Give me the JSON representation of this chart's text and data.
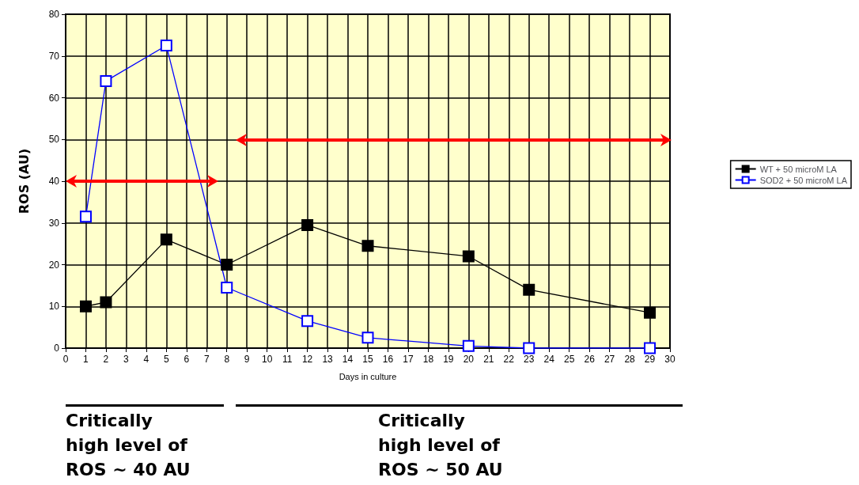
{
  "chart_data": {
    "type": "line",
    "xlabel": "Days in culture",
    "ylabel": "ROS (AU)",
    "xlim": [
      0,
      30
    ],
    "xticks": [
      0,
      1,
      2,
      3,
      4,
      5,
      6,
      7,
      8,
      9,
      10,
      11,
      12,
      13,
      14,
      15,
      16,
      17,
      18,
      19,
      20,
      21,
      22,
      23,
      24,
      25,
      26,
      27,
      28,
      29,
      30
    ],
    "ylim": [
      0,
      80
    ],
    "yticks": [
      0,
      10,
      20,
      30,
      40,
      50,
      60,
      70,
      80
    ],
    "grid": true,
    "legend": "right",
    "marker": "square",
    "line_style": "solid",
    "series": [
      {
        "name": "WT + 50 microM LA",
        "color": "#000000",
        "x": [
          1,
          2,
          5,
          8,
          12,
          15,
          20,
          23,
          29
        ],
        "values": [
          10,
          11,
          26,
          20,
          29.5,
          24.5,
          22,
          14,
          8.5
        ]
      },
      {
        "name": "SOD2 + 50 microM LA",
        "color": "#0000ff",
        "x": [
          1,
          2,
          5,
          8,
          12,
          15,
          20,
          23,
          29
        ],
        "values": [
          31.5,
          64,
          72.5,
          14.5,
          6.5,
          2.5,
          0.5,
          0,
          0
        ]
      }
    ],
    "annotations": [
      "Critically\nhigh level of\nROS ~ 40 AU",
      "Critically\nhigh level of\nROS ~ 50 AU"
    ]
  }
}
